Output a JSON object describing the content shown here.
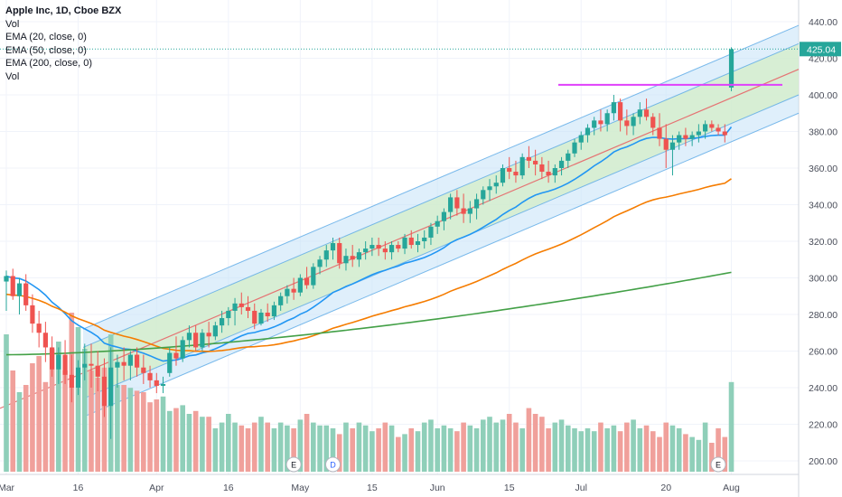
{
  "legend": {
    "title": "Apple Inc, 1D, Cboe BZX",
    "line1": "Vol",
    "line2": "EMA (20, close, 0)",
    "line3": "EMA (50, close, 0)",
    "line4": "EMA (200, close, 0)",
    "line5": "Vol"
  },
  "last_price_label": "425.04",
  "colors": {
    "up": "#26a69a",
    "down": "#ef5350",
    "vol_up": "#8fcfb9",
    "vol_down": "#f0a09b",
    "ema20": "#2196f3",
    "ema50": "#f57c00",
    "ema200": "#43a047",
    "channel_outer": "#c5e1f7",
    "channel_inner": "#d4eecb",
    "channel_line": "#5aa9e6",
    "regression": "#e57373",
    "resistance": "#e040fb",
    "last_price": "#26a69a"
  },
  "chart_data": {
    "type": "candlestick",
    "title": "Apple Inc, 1D, Cboe BZX",
    "y_range": [
      190,
      445
    ],
    "price_ticks": [
      "440.00",
      "420.00",
      "400.00",
      "380.00",
      "360.00",
      "340.00",
      "320.00",
      "300.00",
      "280.00",
      "260.00",
      "240.00",
      "220.00",
      "200.00"
    ],
    "time_ticks": [
      {
        "label": "Mar",
        "bar": 0
      },
      {
        "label": "16",
        "bar": 11
      },
      {
        "label": "Apr",
        "bar": 23
      },
      {
        "label": "16",
        "bar": 34
      },
      {
        "label": "May",
        "bar": 45
      },
      {
        "label": "15",
        "bar": 56
      },
      {
        "label": "Jun",
        "bar": 66
      },
      {
        "label": "15",
        "bar": 77
      },
      {
        "label": "Jul",
        "bar": 88
      },
      {
        "label": "20",
        "bar": 101
      },
      {
        "label": "Aug",
        "bar": 111
      }
    ],
    "events": [
      {
        "label": "E",
        "bar": 44
      },
      {
        "label": "D",
        "bar": 50
      },
      {
        "label": "E",
        "bar": 109
      }
    ],
    "candles": [
      [
        298,
        304,
        282,
        301
      ],
      [
        301,
        305,
        288,
        290
      ],
      [
        290,
        300,
        280,
        297
      ],
      [
        297,
        302,
        282,
        285
      ],
      [
        285,
        291,
        270,
        275
      ],
      [
        275,
        282,
        262,
        270
      ],
      [
        270,
        276,
        254,
        262
      ],
      [
        262,
        268,
        246,
        250
      ],
      [
        250,
        262,
        242,
        258
      ],
      [
        258,
        266,
        242,
        247
      ],
      [
        247,
        258,
        232,
        240
      ],
      [
        240,
        255,
        236,
        251
      ],
      [
        251,
        264,
        244,
        253
      ],
      [
        253,
        264,
        240,
        252
      ],
      [
        252,
        260,
        238,
        246
      ],
      [
        246,
        256,
        224,
        230
      ],
      [
        230,
        262,
        212,
        251
      ],
      [
        251,
        258,
        240,
        254
      ],
      [
        254,
        262,
        244,
        252
      ],
      [
        252,
        260,
        244,
        258
      ],
      [
        258,
        262,
        246,
        251
      ],
      [
        251,
        258,
        242,
        248
      ],
      [
        248,
        252,
        240,
        244
      ],
      [
        244,
        248,
        237,
        241
      ],
      [
        241,
        246,
        237,
        242
      ],
      [
        248,
        262,
        246,
        259
      ],
      [
        259,
        268,
        252,
        256
      ],
      [
        256,
        268,
        254,
        266
      ],
      [
        266,
        274,
        262,
        270
      ],
      [
        270,
        274,
        260,
        262
      ],
      [
        262,
        272,
        260,
        270
      ],
      [
        270,
        276,
        262,
        268
      ],
      [
        268,
        276,
        266,
        274
      ],
      [
        274,
        282,
        270,
        278
      ],
      [
        278,
        284,
        274,
        282
      ],
      [
        282,
        289,
        274,
        286
      ],
      [
        286,
        292,
        280,
        284
      ],
      [
        284,
        290,
        278,
        282
      ],
      [
        282,
        286,
        272,
        275
      ],
      [
        275,
        283,
        274,
        281
      ],
      [
        281,
        286,
        276,
        279
      ],
      [
        279,
        287,
        277,
        285
      ],
      [
        285,
        292,
        282,
        290
      ],
      [
        290,
        296,
        286,
        294
      ],
      [
        294,
        300,
        288,
        292
      ],
      [
        292,
        302,
        290,
        300
      ],
      [
        300,
        306,
        294,
        296
      ],
      [
        296,
        308,
        294,
        306
      ],
      [
        306,
        312,
        302,
        310
      ],
      [
        310,
        318,
        306,
        315
      ],
      [
        315,
        322,
        310,
        319
      ],
      [
        319,
        322,
        305,
        308
      ],
      [
        308,
        316,
        304,
        312
      ],
      [
        312,
        318,
        306,
        310
      ],
      [
        310,
        316,
        306,
        314
      ],
      [
        314,
        320,
        310,
        316
      ],
      [
        316,
        322,
        312,
        318
      ],
      [
        318,
        322,
        312,
        316
      ],
      [
        316,
        320,
        310,
        314
      ],
      [
        314,
        320,
        310,
        318
      ],
      [
        318,
        320,
        314,
        316
      ],
      [
        316,
        324,
        313,
        322
      ],
      [
        322,
        326,
        316,
        318
      ],
      [
        318,
        324,
        314,
        320
      ],
      [
        320,
        326,
        316,
        322
      ],
      [
        322,
        330,
        318,
        328
      ],
      [
        328,
        334,
        324,
        331
      ],
      [
        331,
        338,
        326,
        336
      ],
      [
        336,
        346,
        332,
        344
      ],
      [
        344,
        348,
        334,
        338
      ],
      [
        338,
        346,
        330,
        335
      ],
      [
        335,
        342,
        330,
        338
      ],
      [
        338,
        346,
        332,
        343
      ],
      [
        343,
        350,
        340,
        348
      ],
      [
        348,
        354,
        342,
        350
      ],
      [
        350,
        356,
        346,
        352
      ],
      [
        352,
        362,
        350,
        360
      ],
      [
        360,
        366,
        354,
        358
      ],
      [
        358,
        364,
        352,
        356
      ],
      [
        356,
        368,
        354,
        366
      ],
      [
        366,
        372,
        360,
        364
      ],
      [
        364,
        370,
        356,
        362
      ],
      [
        362,
        366,
        354,
        358
      ],
      [
        358,
        364,
        352,
        356
      ],
      [
        356,
        362,
        352,
        360
      ],
      [
        360,
        366,
        356,
        364
      ],
      [
        364,
        370,
        360,
        368
      ],
      [
        368,
        376,
        366,
        374
      ],
      [
        374,
        380,
        370,
        378
      ],
      [
        378,
        384,
        374,
        382
      ],
      [
        382,
        388,
        378,
        386
      ],
      [
        386,
        392,
        380,
        384
      ],
      [
        384,
        392,
        380,
        390
      ],
      [
        390,
        400,
        386,
        396
      ],
      [
        396,
        398,
        380,
        386
      ],
      [
        386,
        392,
        378,
        383
      ],
      [
        383,
        390,
        378,
        388
      ],
      [
        388,
        396,
        384,
        392
      ],
      [
        392,
        398,
        386,
        388
      ],
      [
        388,
        390,
        378,
        382
      ],
      [
        382,
        390,
        372,
        376
      ],
      [
        376,
        384,
        360,
        370
      ],
      [
        370,
        378,
        356,
        374
      ],
      [
        374,
        380,
        370,
        378
      ],
      [
        378,
        382,
        372,
        376
      ],
      [
        376,
        380,
        372,
        378
      ],
      [
        378,
        384,
        374,
        380
      ],
      [
        380,
        386,
        376,
        384
      ],
      [
        384,
        386,
        380,
        382
      ],
      [
        382,
        384,
        378,
        380
      ],
      [
        380,
        384,
        374,
        378
      ],
      [
        404,
        426,
        402,
        425
      ]
    ],
    "volumes": [
      95,
      70,
      55,
      60,
      75,
      80,
      62,
      85,
      90,
      70,
      110,
      100,
      85,
      70,
      65,
      72,
      95,
      60,
      60,
      58,
      56,
      55,
      48,
      50,
      52,
      42,
      44,
      46,
      40,
      42,
      38,
      38,
      30,
      34,
      40,
      34,
      32,
      30,
      34,
      38,
      34,
      30,
      34,
      32,
      30,
      36,
      40,
      34,
      32,
      32,
      30,
      26,
      34,
      30,
      34,
      32,
      28,
      30,
      34,
      32,
      24,
      26,
      30,
      28,
      34,
      36,
      30,
      32,
      30,
      28,
      34,
      32,
      30,
      36,
      38,
      34,
      36,
      40,
      34,
      30,
      44,
      40,
      38,
      30,
      34,
      36,
      32,
      30,
      28,
      30,
      28,
      34,
      30,
      32,
      28,
      34,
      36,
      30,
      32,
      28,
      24,
      34,
      32,
      30,
      26,
      24,
      22,
      34,
      20,
      30,
      24,
      62
    ]
  }
}
